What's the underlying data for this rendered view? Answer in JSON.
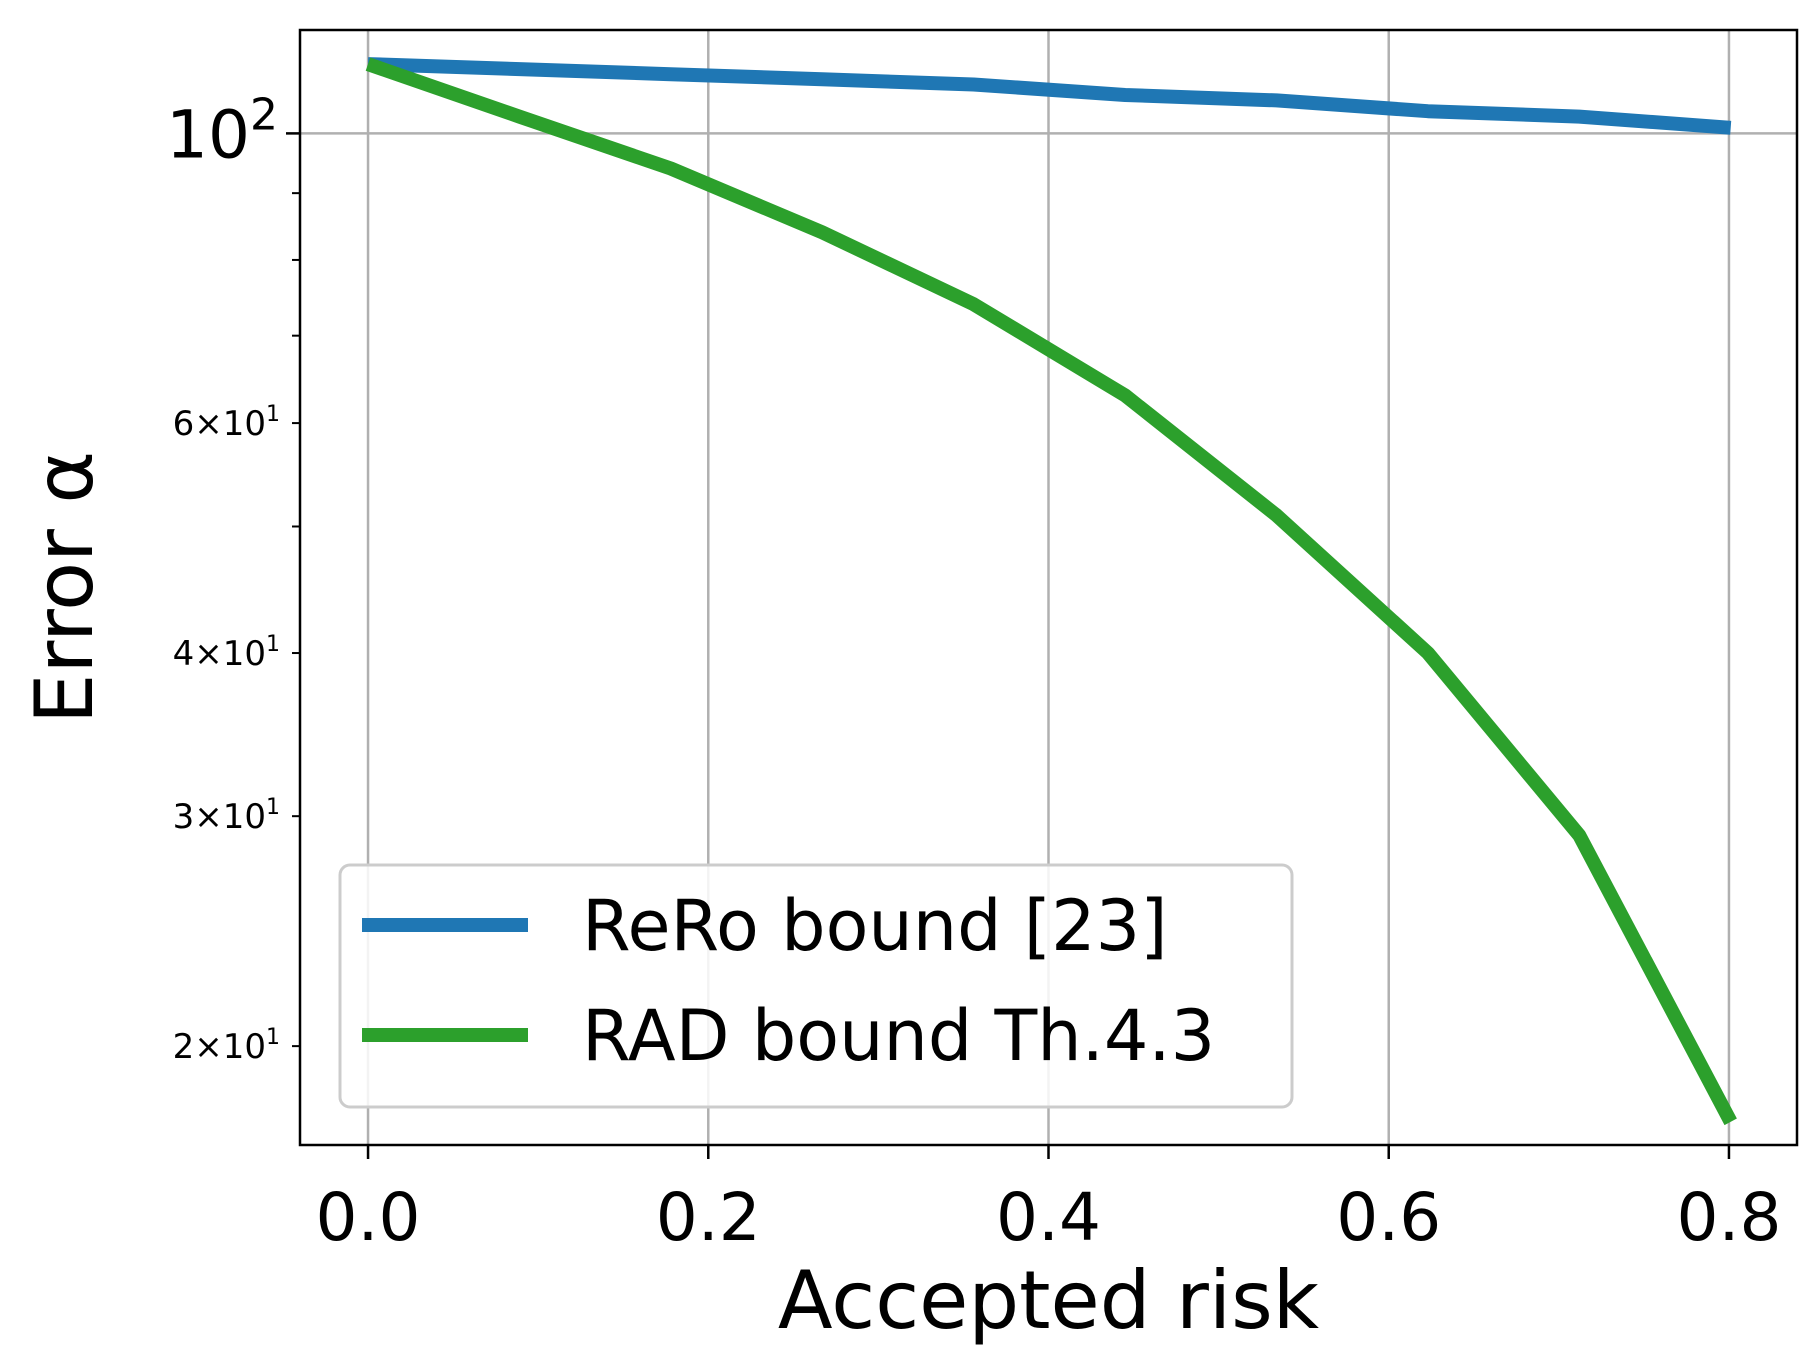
{
  "chart_data": {
    "type": "line",
    "xlabel": "Accepted risk",
    "ylabel": "Error α",
    "y_scale": "log",
    "xlim": [
      -0.04,
      0.84
    ],
    "ylim": [
      16.8,
      120
    ],
    "grid": true,
    "legend_position": "lower-left",
    "x_ticks": [
      {
        "value": 0.0,
        "label": "0.0"
      },
      {
        "value": 0.2,
        "label": "0.2"
      },
      {
        "value": 0.4,
        "label": "0.4"
      },
      {
        "value": 0.6,
        "label": "0.6"
      },
      {
        "value": 0.8,
        "label": "0.8"
      }
    ],
    "y_major_ticks": [
      {
        "value": 100,
        "base": "10",
        "exp": "2"
      }
    ],
    "y_minor_ticks": [
      {
        "value": 20,
        "mant": "2",
        "base": "10",
        "exp": "1",
        "labeled": true
      },
      {
        "value": 30,
        "mant": "3",
        "base": "10",
        "exp": "1",
        "labeled": true
      },
      {
        "value": 40,
        "mant": "4",
        "base": "10",
        "exp": "1",
        "labeled": true
      },
      {
        "value": 50,
        "labeled": false
      },
      {
        "value": 60,
        "mant": "6",
        "base": "10",
        "exp": "1",
        "labeled": true
      },
      {
        "value": 70,
        "labeled": false
      },
      {
        "value": 80,
        "labeled": false
      },
      {
        "value": 90,
        "labeled": false
      }
    ],
    "series": [
      {
        "name": "ReRo bound [23]",
        "color": "#1f77b4",
        "x": [
          0.0,
          0.089,
          0.178,
          0.267,
          0.356,
          0.445,
          0.534,
          0.623,
          0.712,
          0.801
        ],
        "y": [
          113,
          112,
          111,
          110,
          109,
          107,
          106,
          104,
          103,
          101
        ]
      },
      {
        "name": "RAD bound Th.4.3",
        "color": "#2ca02c",
        "x": [
          0.0,
          0.089,
          0.178,
          0.267,
          0.356,
          0.445,
          0.534,
          0.623,
          0.712,
          0.801
        ],
        "y": [
          113,
          103,
          94,
          84,
          74,
          63,
          51,
          40,
          29,
          17.5
        ]
      }
    ]
  }
}
